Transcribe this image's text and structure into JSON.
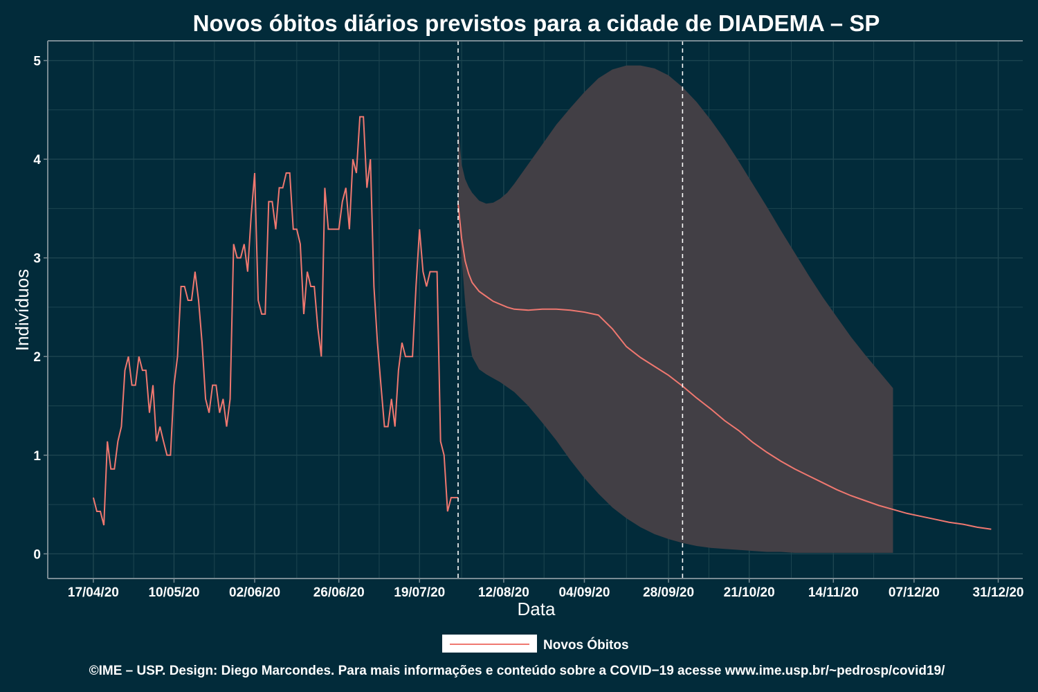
{
  "chart_data": {
    "type": "line",
    "title": "Novos óbitos diários previstos para a cidade de DIADEMA – SP",
    "xlabel": "Data",
    "ylabel": "Indivíduos",
    "x_tick_labels": [
      "17/04/20",
      "10/05/20",
      "02/06/20",
      "26/06/20",
      "19/07/20",
      "12/08/20",
      "04/09/20",
      "28/09/20",
      "21/10/20",
      "14/11/20",
      "07/12/20",
      "31/12/20"
    ],
    "x_tick_days": [
      0,
      23,
      46,
      70,
      93,
      117,
      140,
      164,
      187,
      211,
      234,
      258
    ],
    "y_ticks": [
      0,
      1,
      2,
      3,
      4,
      5
    ],
    "ylim": [
      -0.25,
      5.2
    ],
    "xlim": [
      -13,
      265
    ],
    "grid": true,
    "legend_position": "bottom",
    "vertical_dashed_lines_days": [
      104,
      168
    ],
    "series": [
      {
        "name": "Novos Óbitos",
        "color": "#f07870",
        "observed_days": [
          0,
          1,
          2,
          3,
          4,
          5,
          6,
          7,
          8,
          9,
          10,
          11,
          12,
          13,
          14,
          15,
          16,
          17,
          18,
          19,
          20,
          21,
          22,
          23,
          24,
          25,
          26,
          27,
          28,
          29,
          30,
          31,
          32,
          33,
          34,
          35,
          36,
          37,
          38,
          39,
          40,
          41,
          42,
          43,
          44,
          45,
          46,
          47,
          48,
          49,
          50,
          51,
          52,
          53,
          54,
          55,
          56,
          57,
          58,
          59,
          60,
          61,
          62,
          63,
          64,
          65,
          66,
          67,
          68,
          69,
          70,
          71,
          72,
          73,
          74,
          75,
          76,
          77,
          78,
          79,
          80,
          81,
          82,
          83,
          84,
          85,
          86,
          87,
          88,
          89,
          90,
          91,
          92,
          93,
          94,
          95,
          96,
          97,
          98,
          99,
          100,
          101,
          102,
          103,
          104
        ],
        "observed_values": [
          0.57,
          0.43,
          0.43,
          0.29,
          1.14,
          0.86,
          0.86,
          1.14,
          1.29,
          1.86,
          2.0,
          1.71,
          1.71,
          2.0,
          1.86,
          1.86,
          1.43,
          1.71,
          1.14,
          1.29,
          1.14,
          1.0,
          1.0,
          1.71,
          2.0,
          2.71,
          2.71,
          2.57,
          2.57,
          2.86,
          2.57,
          2.14,
          1.57,
          1.43,
          1.71,
          1.71,
          1.43,
          1.57,
          1.29,
          1.57,
          3.14,
          3.0,
          3.0,
          3.14,
          2.86,
          3.43,
          3.86,
          2.57,
          2.43,
          2.43,
          3.57,
          3.57,
          3.29,
          3.71,
          3.71,
          3.86,
          3.86,
          3.29,
          3.29,
          3.14,
          2.43,
          2.86,
          2.71,
          2.71,
          2.29,
          2.0,
          3.71,
          3.29,
          3.29,
          3.29,
          3.29,
          3.57,
          3.71,
          3.29,
          4.0,
          3.86,
          4.43,
          4.43,
          3.71,
          4.0,
          2.71,
          2.14,
          1.71,
          1.29,
          1.29,
          1.57,
          1.29,
          1.86,
          2.14,
          2.0,
          2.0,
          2.0,
          2.71,
          3.29,
          2.86,
          2.71,
          2.86,
          2.86,
          2.86,
          1.14,
          1.0,
          0.43,
          0.57,
          0.57,
          0.57
        ],
        "forecast_days": [
          104,
          105,
          106,
          107,
          108,
          110,
          112,
          114,
          116,
          118,
          120,
          124,
          128,
          132,
          136,
          140,
          144,
          148,
          152,
          156,
          160,
          164,
          168,
          172,
          176,
          180,
          184,
          188,
          192,
          196,
          200,
          204,
          208,
          212,
          216,
          220,
          224,
          228,
          232,
          236,
          240,
          244,
          248,
          252,
          256
        ],
        "forecast_values": [
          3.55,
          3.2,
          2.97,
          2.84,
          2.75,
          2.66,
          2.61,
          2.56,
          2.53,
          2.5,
          2.48,
          2.47,
          2.48,
          2.48,
          2.47,
          2.45,
          2.42,
          2.28,
          2.1,
          1.99,
          1.9,
          1.81,
          1.7,
          1.58,
          1.47,
          1.35,
          1.25,
          1.13,
          1.03,
          0.94,
          0.86,
          0.79,
          0.72,
          0.65,
          0.59,
          0.54,
          0.49,
          0.45,
          0.41,
          0.38,
          0.35,
          0.32,
          0.3,
          0.27,
          0.25
        ],
        "band_upper": [
          4.35,
          3.95,
          3.8,
          3.72,
          3.66,
          3.58,
          3.55,
          3.56,
          3.6,
          3.66,
          3.75,
          3.95,
          4.15,
          4.35,
          4.52,
          4.68,
          4.82,
          4.91,
          4.95,
          4.95,
          4.92,
          4.85,
          4.73,
          4.58,
          4.4,
          4.2,
          3.98,
          3.75,
          3.52,
          3.28,
          3.05,
          2.82,
          2.6,
          2.4,
          2.2,
          2.02,
          1.85,
          1.68
        ],
        "band_lower": [
          3.5,
          3.0,
          2.55,
          2.2,
          2.0,
          1.87,
          1.82,
          1.78,
          1.74,
          1.69,
          1.64,
          1.5,
          1.33,
          1.15,
          0.95,
          0.77,
          0.61,
          0.47,
          0.36,
          0.27,
          0.2,
          0.15,
          0.11,
          0.08,
          0.06,
          0.05,
          0.04,
          0.03,
          0.02,
          0.02,
          0.01,
          0.01,
          0.01,
          0.01,
          0.01,
          0.01,
          0.01,
          0.01
        ],
        "band_days": [
          104,
          105,
          106,
          107,
          108,
          110,
          112,
          114,
          116,
          118,
          120,
          124,
          128,
          132,
          136,
          140,
          144,
          148,
          152,
          156,
          160,
          164,
          168,
          172,
          176,
          180,
          184,
          188,
          192,
          196,
          200,
          204,
          208,
          212,
          216,
          220,
          224,
          228
        ]
      }
    ]
  },
  "caption": "©IME – USP. Design: Diego Marcondes. Para mais informações e conteúdo sobre a COVID−19 acesse www.ime.usp.br/~pedrosp/covid19/",
  "colors": {
    "background": "#022b3a",
    "band": "#423f45",
    "line": "#f07870",
    "grid": "#1d4550",
    "axis": "#7a8c94"
  }
}
